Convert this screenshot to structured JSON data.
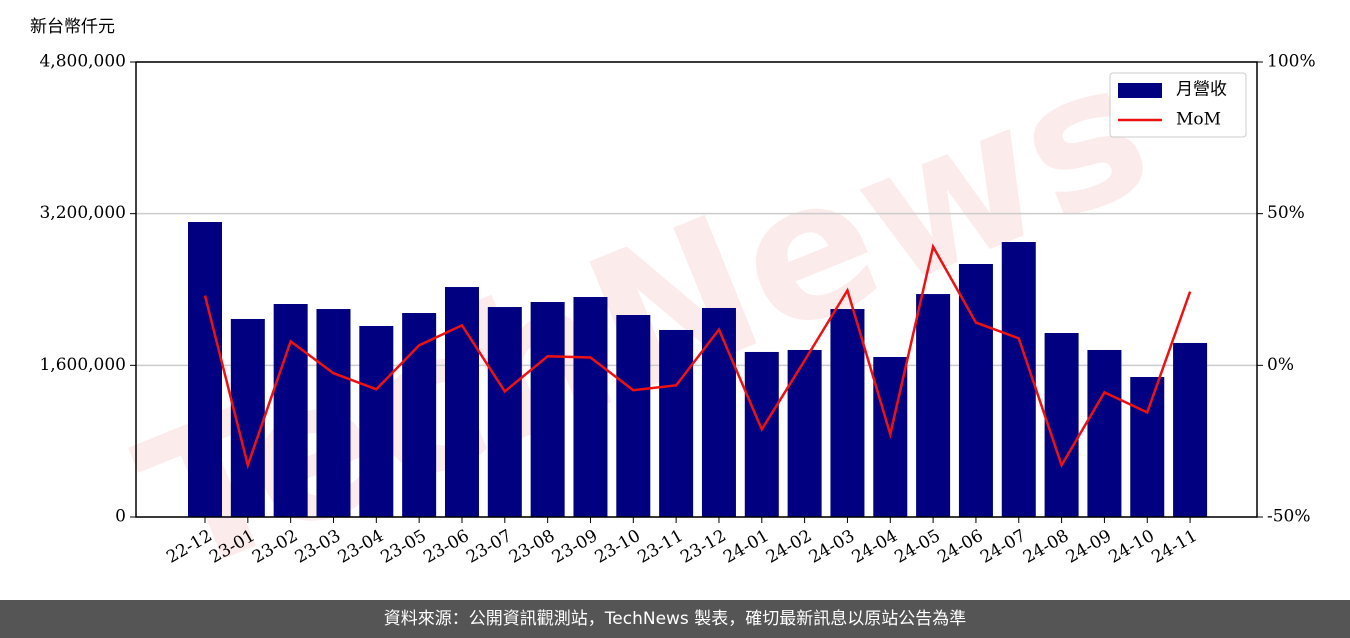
{
  "chart_data": {
    "type": "bar_line",
    "y_unit_label": "新台幣仟元",
    "watermark": "TechNews",
    "footer": "資料來源：公開資訊觀測站，TechNews 製表，確切最新訊息以原站公告為準",
    "categories": [
      "22-12",
      "23-01",
      "23-02",
      "23-03",
      "23-04",
      "23-05",
      "23-06",
      "23-07",
      "23-08",
      "23-09",
      "23-10",
      "23-11",
      "23-12",
      "24-01",
      "24-02",
      "24-03",
      "24-04",
      "24-05",
      "24-06",
      "24-07",
      "24-08",
      "24-09",
      "24-10",
      "24-11"
    ],
    "series": [
      {
        "name": "月營收",
        "type": "bar",
        "color": "#000080",
        "values": [
          3112000,
          2089000,
          2247000,
          2194000,
          2015000,
          2152000,
          2426000,
          2215000,
          2268000,
          2321000,
          2131000,
          1973000,
          2205000,
          1741000,
          1762000,
          2194000,
          1688000,
          2352000,
          2669000,
          2901000,
          1941000,
          1762000,
          1477000,
          1836000
        ]
      },
      {
        "name": "MoM",
        "type": "line",
        "axis": "y2",
        "color": "#ee1111",
        "values": [
          23.0,
          -32.9,
          7.9,
          -2.6,
          -7.9,
          6.6,
          13.2,
          -8.6,
          3.0,
          2.6,
          -8.2,
          -6.6,
          11.8,
          -21.1,
          1.6,
          24.7,
          -22.7,
          39.1,
          14.1,
          8.9,
          -32.9,
          -8.9,
          -15.5,
          24.3
        ]
      }
    ],
    "ylim": [
      0,
      4800000
    ],
    "yticks": [
      {
        "value": 0,
        "label": "0"
      },
      {
        "value": 1600000,
        "label": "1,600,000"
      },
      {
        "value": 3200000,
        "label": "3,200,000"
      },
      {
        "value": 4800000,
        "label": "4,800,000"
      }
    ],
    "y2lim": [
      -50,
      100
    ],
    "y2ticks": [
      {
        "value": -50,
        "label": "-50%"
      },
      {
        "value": 0,
        "label": "0%"
      },
      {
        "value": 50,
        "label": "50%"
      },
      {
        "value": 100,
        "label": "100%"
      }
    ],
    "grid": true,
    "legend": "upper right"
  }
}
